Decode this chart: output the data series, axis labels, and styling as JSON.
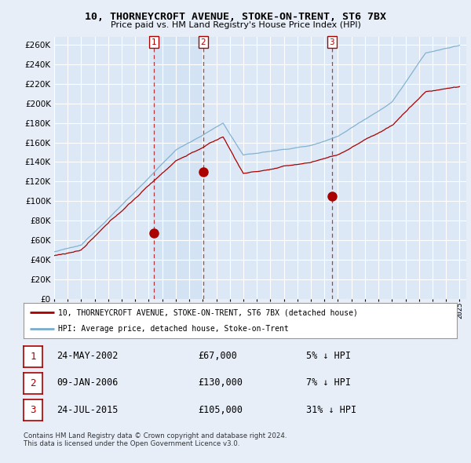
{
  "title": "10, THORNEYCROFT AVENUE, STOKE-ON-TRENT, ST6 7BX",
  "subtitle": "Price paid vs. HM Land Registry's House Price Index (HPI)",
  "ytick_values": [
    0,
    20000,
    40000,
    60000,
    80000,
    100000,
    120000,
    140000,
    160000,
    180000,
    200000,
    220000,
    240000,
    260000
  ],
  "ylim": [
    0,
    268000
  ],
  "xlim_start": 1995.0,
  "xlim_end": 2025.5,
  "background_color": "#e8eef8",
  "plot_bg_color": "#dce8f5",
  "grid_color": "#ffffff",
  "legend_label_red": "10, THORNEYCROFT AVENUE, STOKE-ON-TRENT, ST6 7BX (detached house)",
  "legend_label_blue": "HPI: Average price, detached house, Stoke-on-Trent",
  "sale1_x": 2002.39,
  "sale1_y": 67000,
  "sale1_label": "1",
  "sale1_date": "24-MAY-2002",
  "sale1_price": "£67,000",
  "sale1_hpi": "5% ↓ HPI",
  "sale2_x": 2006.03,
  "sale2_y": 130000,
  "sale2_label": "2",
  "sale2_date": "09-JAN-2006",
  "sale2_price": "£130,000",
  "sale2_hpi": "7% ↓ HPI",
  "sale3_x": 2015.56,
  "sale3_y": 105000,
  "sale3_label": "3",
  "sale3_date": "24-JUL-2015",
  "sale3_price": "£105,000",
  "sale3_hpi": "31% ↓ HPI",
  "footer": "Contains HM Land Registry data © Crown copyright and database right 2024.\nThis data is licensed under the Open Government Licence v3.0.",
  "red_color": "#aa0000",
  "blue_color": "#7aaccc"
}
